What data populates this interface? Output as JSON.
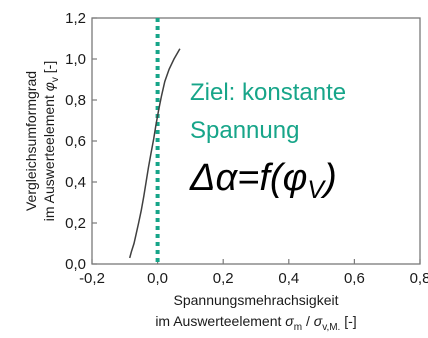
{
  "chart_data": {
    "type": "line",
    "xlabel": {
      "line1": "Spannungsmehrachsigkeit",
      "line2_prefix": "im Auswerteelement ",
      "sym1": "σ",
      "sub1": "m",
      "sep": " / ",
      "sym2": "σ",
      "sub2": "v,M.",
      "unit": " [-]"
    },
    "ylabel": {
      "line1": "Vergleichsumformgrad",
      "line2_prefix": "im Auswerteelement ",
      "sym": "φ",
      "sub": "v",
      "unit": " [-]"
    },
    "xlim": [
      -0.2,
      0.8
    ],
    "ylim": [
      0.0,
      1.2
    ],
    "x_ticks": [
      "-0,2",
      "0,0",
      "0,2",
      "0,4",
      "0,6",
      "0,8"
    ],
    "y_ticks": [
      "0,0",
      "0,2",
      "0,4",
      "0,6",
      "0,8",
      "1,0",
      "1,2"
    ],
    "grid": false,
    "series": [
      {
        "color": "#404040",
        "points": [
          [
            -0.085,
            0.03
          ],
          [
            -0.08,
            0.06
          ],
          [
            -0.072,
            0.1
          ],
          [
            -0.065,
            0.15
          ],
          [
            -0.058,
            0.2
          ],
          [
            -0.05,
            0.26
          ],
          [
            -0.042,
            0.33
          ],
          [
            -0.035,
            0.4
          ],
          [
            -0.028,
            0.47
          ],
          [
            -0.02,
            0.54
          ],
          [
            -0.012,
            0.61
          ],
          [
            -0.005,
            0.68
          ],
          [
            0.003,
            0.75
          ],
          [
            0.012,
            0.82
          ],
          [
            0.022,
            0.89
          ],
          [
            0.035,
            0.95
          ],
          [
            0.05,
            1.0
          ],
          [
            0.068,
            1.05
          ]
        ]
      }
    ],
    "reference_line": {
      "x": 0.0,
      "color": "#17a589",
      "style": "dotted"
    },
    "annotations": {
      "goal_line1": "Ziel: konstante",
      "goal_line2": "Spannung",
      "goal_color": "#17a589",
      "formula_prefix": "Δα=f(",
      "formula_symbol": "φ",
      "formula_sub": "V",
      "formula_suffix": ")"
    }
  }
}
